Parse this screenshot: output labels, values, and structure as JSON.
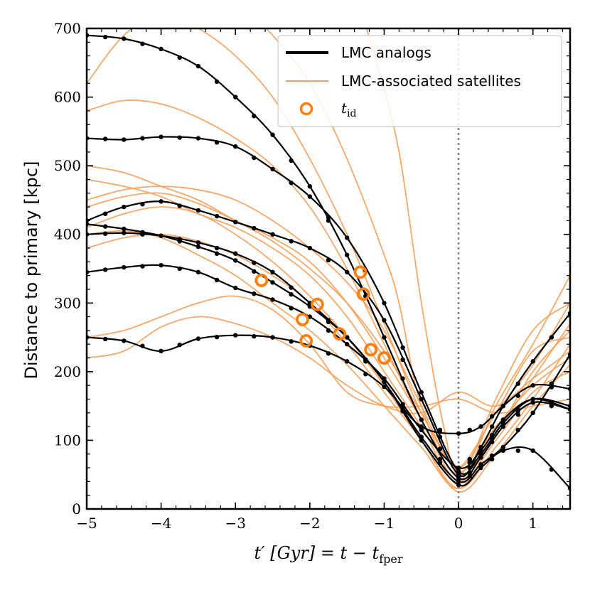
{
  "chart_data": {
    "type": "line",
    "xlabel_main": "t′ [Gyr] = t − t",
    "xlabel_sub": "fper",
    "ylabel": "Distance to primary [kpc]",
    "xlim": [
      -5,
      1.5
    ],
    "ylim": [
      0,
      700
    ],
    "grid": false,
    "x_ticks": [
      -5,
      -4,
      -3,
      -2,
      -1,
      0,
      1
    ],
    "x_tick_labels": [
      "−5",
      "−4",
      "−3",
      "−2",
      "−1",
      "0",
      "1"
    ],
    "y_ticks": [
      0,
      100,
      200,
      300,
      400,
      500,
      600,
      700
    ],
    "y_tick_labels": [
      "0",
      "100",
      "200",
      "300",
      "400",
      "500",
      "600",
      "700"
    ],
    "vline_x": 0,
    "colors": {
      "analog": "#000000",
      "satellite": "#f5a05a",
      "marker": "#ff7f0e",
      "vline": "#808080"
    },
    "legend": {
      "position": "top-right",
      "entries": [
        {
          "label": "LMC analogs",
          "style": "analog-line"
        },
        {
          "label": "LMC-associated satellites",
          "style": "satellite-line"
        },
        {
          "label": "t",
          "sub": "id",
          "style": "ring-marker"
        }
      ]
    },
    "analog_series": [
      {
        "name": "analog-1",
        "points": [
          [
            -5,
            690
          ],
          [
            -4.5,
            685
          ],
          [
            -4,
            670
          ],
          [
            -3.5,
            645
          ],
          [
            -3,
            600
          ],
          [
            -2.5,
            545
          ],
          [
            -2,
            470
          ],
          [
            -1.5,
            370
          ],
          [
            -1,
            250
          ],
          [
            -0.5,
            130
          ],
          [
            0,
            45
          ],
          [
            0.3,
            75
          ],
          [
            0.6,
            120
          ],
          [
            1,
            155
          ],
          [
            1.5,
            145
          ]
        ]
      },
      {
        "name": "analog-2",
        "points": [
          [
            -5,
            540
          ],
          [
            -4.5,
            538
          ],
          [
            -4,
            542
          ],
          [
            -3.5,
            540
          ],
          [
            -3,
            528
          ],
          [
            -2.5,
            495
          ],
          [
            -2,
            455
          ],
          [
            -1.5,
            395
          ],
          [
            -1,
            300
          ],
          [
            -0.5,
            170
          ],
          [
            0,
            55
          ],
          [
            0.3,
            80
          ],
          [
            0.6,
            125
          ],
          [
            1,
            160
          ],
          [
            1.5,
            150
          ]
        ]
      },
      {
        "name": "analog-3",
        "points": [
          [
            -5,
            420
          ],
          [
            -4.5,
            440
          ],
          [
            -4,
            448
          ],
          [
            -3.5,
            435
          ],
          [
            -3,
            418
          ],
          [
            -2.5,
            400
          ],
          [
            -2,
            380
          ],
          [
            -1.5,
            345
          ],
          [
            -1,
            275
          ],
          [
            -0.5,
            160
          ],
          [
            0,
            50
          ],
          [
            0.3,
            90
          ],
          [
            0.6,
            150
          ],
          [
            1,
            215
          ],
          [
            1.5,
            285
          ]
        ]
      },
      {
        "name": "analog-4",
        "points": [
          [
            -5,
            415
          ],
          [
            -4.5,
            408
          ],
          [
            -4,
            398
          ],
          [
            -3.5,
            382
          ],
          [
            -3,
            362
          ],
          [
            -2.5,
            330
          ],
          [
            -2,
            295
          ],
          [
            -1.5,
            250
          ],
          [
            -1,
            185
          ],
          [
            -0.5,
            105
          ],
          [
            0,
            40
          ],
          [
            0.3,
            65
          ],
          [
            0.6,
            90
          ],
          [
            1,
            140
          ],
          [
            1.5,
            225
          ]
        ]
      },
      {
        "name": "analog-5",
        "points": [
          [
            -5,
            400
          ],
          [
            -4.5,
            402
          ],
          [
            -4,
            398
          ],
          [
            -3.5,
            388
          ],
          [
            -3,
            372
          ],
          [
            -2.5,
            345
          ],
          [
            -2,
            300
          ],
          [
            -1.5,
            250
          ],
          [
            -1,
            185
          ],
          [
            -0.5,
            100
          ],
          [
            0,
            35
          ],
          [
            0.3,
            60
          ],
          [
            0.6,
            85
          ],
          [
            1,
            85
          ],
          [
            1.5,
            30
          ]
        ]
      },
      {
        "name": "analog-6",
        "points": [
          [
            -5,
            345
          ],
          [
            -4.5,
            352
          ],
          [
            -4,
            355
          ],
          [
            -3.5,
            345
          ],
          [
            -3,
            322
          ],
          [
            -2.5,
            305
          ],
          [
            -2,
            280
          ],
          [
            -1.5,
            240
          ],
          [
            -1,
            190
          ],
          [
            -0.5,
            115
          ],
          [
            0,
            60
          ],
          [
            0.3,
            85
          ],
          [
            0.6,
            130
          ],
          [
            1,
            160
          ],
          [
            1.5,
            145
          ]
        ]
      },
      {
        "name": "analog-7",
        "points": [
          [
            -5,
            250
          ],
          [
            -4.5,
            245
          ],
          [
            -4,
            230
          ],
          [
            -3.5,
            248
          ],
          [
            -3,
            253
          ],
          [
            -2.5,
            250
          ],
          [
            -2,
            238
          ],
          [
            -1.5,
            215
          ],
          [
            -1,
            178
          ],
          [
            -0.5,
            120
          ],
          [
            0,
            110
          ],
          [
            0.3,
            120
          ],
          [
            0.6,
            150
          ],
          [
            1,
            180
          ],
          [
            1.5,
            175
          ]
        ]
      }
    ],
    "satellite_series": [
      {
        "name": "sat-1",
        "points": [
          [
            -5,
            580
          ],
          [
            -4.5,
            595
          ],
          [
            -4,
            590
          ],
          [
            -3.5,
            570
          ],
          [
            -3,
            540
          ],
          [
            -2.5,
            500
          ],
          [
            -2,
            440
          ],
          [
            -1.5,
            350
          ],
          [
            -1,
            240
          ],
          [
            -0.5,
            130
          ],
          [
            0,
            50
          ],
          [
            0.5,
            110
          ],
          [
            1,
            200
          ],
          [
            1.5,
            260
          ]
        ]
      },
      {
        "name": "sat-2",
        "points": [
          [
            -5,
            500
          ],
          [
            -4.5,
            490
          ],
          [
            -4,
            470
          ],
          [
            -3.5,
            450
          ],
          [
            -3,
            420
          ],
          [
            -2.5,
            390
          ],
          [
            -2,
            350
          ],
          [
            -1.5,
            300
          ],
          [
            -1,
            230
          ],
          [
            -0.5,
            140
          ],
          [
            0,
            60
          ],
          [
            0.5,
            140
          ],
          [
            1,
            210
          ],
          [
            1.5,
            300
          ]
        ]
      },
      {
        "name": "sat-3",
        "points": [
          [
            -5,
            480
          ],
          [
            -4.5,
            470
          ],
          [
            -4,
            455
          ],
          [
            -3.5,
            430
          ],
          [
            -3,
            410
          ],
          [
            -2.5,
            380
          ],
          [
            -2,
            340
          ],
          [
            -1.5,
            280
          ],
          [
            -1,
            200
          ],
          [
            -0.5,
            120
          ],
          [
            0,
            40
          ],
          [
            0.5,
            150
          ],
          [
            1,
            240
          ],
          [
            1.5,
            340
          ]
        ]
      },
      {
        "name": "sat-4",
        "points": [
          [
            -5,
            440
          ],
          [
            -4.5,
            455
          ],
          [
            -4,
            460
          ],
          [
            -3.5,
            445
          ],
          [
            -3,
            420
          ],
          [
            -2.5,
            395
          ],
          [
            -2,
            360
          ],
          [
            -1.5,
            300
          ],
          [
            -1,
            220
          ],
          [
            -0.5,
            130
          ],
          [
            0,
            40
          ],
          [
            0.5,
            100
          ],
          [
            1,
            170
          ],
          [
            1.5,
            200
          ]
        ]
      },
      {
        "name": "sat-5",
        "points": [
          [
            -5,
            410
          ],
          [
            -4.5,
            430
          ],
          [
            -4,
            440
          ],
          [
            -3.5,
            430
          ],
          [
            -3,
            400
          ],
          [
            -2.5,
            360
          ],
          [
            -2,
            310
          ],
          [
            -1.5,
            250
          ],
          [
            -1,
            180
          ],
          [
            -0.5,
            100
          ],
          [
            0,
            30
          ],
          [
            0.5,
            90
          ],
          [
            1,
            160
          ],
          [
            1.5,
            240
          ]
        ]
      },
      {
        "name": "sat-6",
        "points": [
          [
            -5,
            380
          ],
          [
            -4.5,
            395
          ],
          [
            -4,
            400
          ],
          [
            -3.5,
            390
          ],
          [
            -3,
            370
          ],
          [
            -2.5,
            340
          ],
          [
            -2,
            300
          ],
          [
            -1.5,
            240
          ],
          [
            -1,
            170
          ],
          [
            -0.5,
            100
          ],
          [
            0,
            25
          ],
          [
            0.5,
            80
          ],
          [
            1,
            150
          ],
          [
            1.5,
            210
          ]
        ]
      },
      {
        "name": "sat-7",
        "points": [
          [
            -5,
            220
          ],
          [
            -4.5,
            230
          ],
          [
            -4,
            265
          ],
          [
            -3.5,
            280
          ],
          [
            -3,
            270
          ],
          [
            -2.5,
            250
          ],
          [
            -2,
            220
          ],
          [
            -1.5,
            180
          ],
          [
            -1,
            150
          ],
          [
            -0.5,
            140
          ],
          [
            0,
            170
          ],
          [
            0.5,
            150
          ],
          [
            1,
            190
          ],
          [
            1.5,
            230
          ]
        ]
      },
      {
        "name": "sat-8",
        "points": [
          [
            -5,
            250
          ],
          [
            -4.5,
            260
          ],
          [
            -4,
            280
          ],
          [
            -3.5,
            300
          ],
          [
            -3,
            310
          ],
          [
            -2.5,
            290
          ],
          [
            -2,
            240
          ],
          [
            -1.5,
            170
          ],
          [
            -1,
            150
          ],
          [
            -0.5,
            150
          ],
          [
            0,
            160
          ],
          [
            0.5,
            140
          ],
          [
            1,
            150
          ],
          [
            1.5,
            160
          ]
        ]
      },
      {
        "name": "sat-9",
        "points": [
          [
            -5,
            620
          ],
          [
            -4.5,
            690
          ],
          [
            -4,
            720
          ],
          [
            -3.5,
            700
          ],
          [
            -3,
            660
          ],
          [
            -2.5,
            600
          ],
          [
            -2,
            510
          ],
          [
            -1.5,
            400
          ],
          [
            -1,
            270
          ],
          [
            -0.5,
            140
          ],
          [
            0,
            50
          ]
        ]
      },
      {
        "name": "sat-10",
        "points": [
          [
            -2.8,
            720
          ],
          [
            -2.5,
            690
          ],
          [
            -2,
            620
          ],
          [
            -1.5,
            510
          ],
          [
            -1,
            370
          ],
          [
            -0.8,
            300
          ],
          [
            -0.5,
            150
          ],
          [
            0,
            50
          ],
          [
            0.5,
            160
          ],
          [
            1,
            260
          ],
          [
            1.5,
            300
          ]
        ]
      },
      {
        "name": "sat-11",
        "points": [
          [
            -1.3,
            720
          ],
          [
            -1.1,
            650
          ],
          [
            -0.8,
            520
          ],
          [
            -0.5,
            300
          ],
          [
            -0.2,
            120
          ],
          [
            0,
            60
          ],
          [
            0.5,
            140
          ],
          [
            1,
            230
          ],
          [
            1.5,
            250
          ]
        ]
      },
      {
        "name": "sat-12",
        "points": [
          [
            -5,
            450
          ],
          [
            -4.5,
            465
          ],
          [
            -4,
            470
          ],
          [
            -3.5,
            465
          ],
          [
            -3,
            450
          ],
          [
            -2.5,
            420
          ],
          [
            -2,
            380
          ],
          [
            -1.5,
            330
          ],
          [
            -1,
            260
          ],
          [
            -0.5,
            150
          ],
          [
            0,
            55
          ],
          [
            0.5,
            120
          ],
          [
            1,
            180
          ],
          [
            1.5,
            220
          ]
        ]
      },
      {
        "name": "sat-13",
        "points": [
          [
            -5,
            400
          ],
          [
            -4.5,
            405
          ],
          [
            -4,
            395
          ],
          [
            -3.5,
            370
          ],
          [
            -3,
            340
          ],
          [
            -2.5,
            300
          ],
          [
            -2,
            260
          ],
          [
            -1.5,
            210
          ],
          [
            -1,
            150
          ],
          [
            -0.5,
            90
          ],
          [
            0,
            30
          ],
          [
            0.5,
            110
          ],
          [
            1,
            190
          ],
          [
            1.5,
            270
          ]
        ]
      }
    ],
    "tid_markers": [
      {
        "x": -2.65,
        "y": 333
      },
      {
        "x": -2.1,
        "y": 276
      },
      {
        "x": -2.05,
        "y": 245
      },
      {
        "x": -1.9,
        "y": 298
      },
      {
        "x": -1.6,
        "y": 255
      },
      {
        "x": -1.32,
        "y": 345
      },
      {
        "x": -1.28,
        "y": 313
      },
      {
        "x": -1.18,
        "y": 232
      },
      {
        "x": -1.0,
        "y": 220
      }
    ]
  }
}
